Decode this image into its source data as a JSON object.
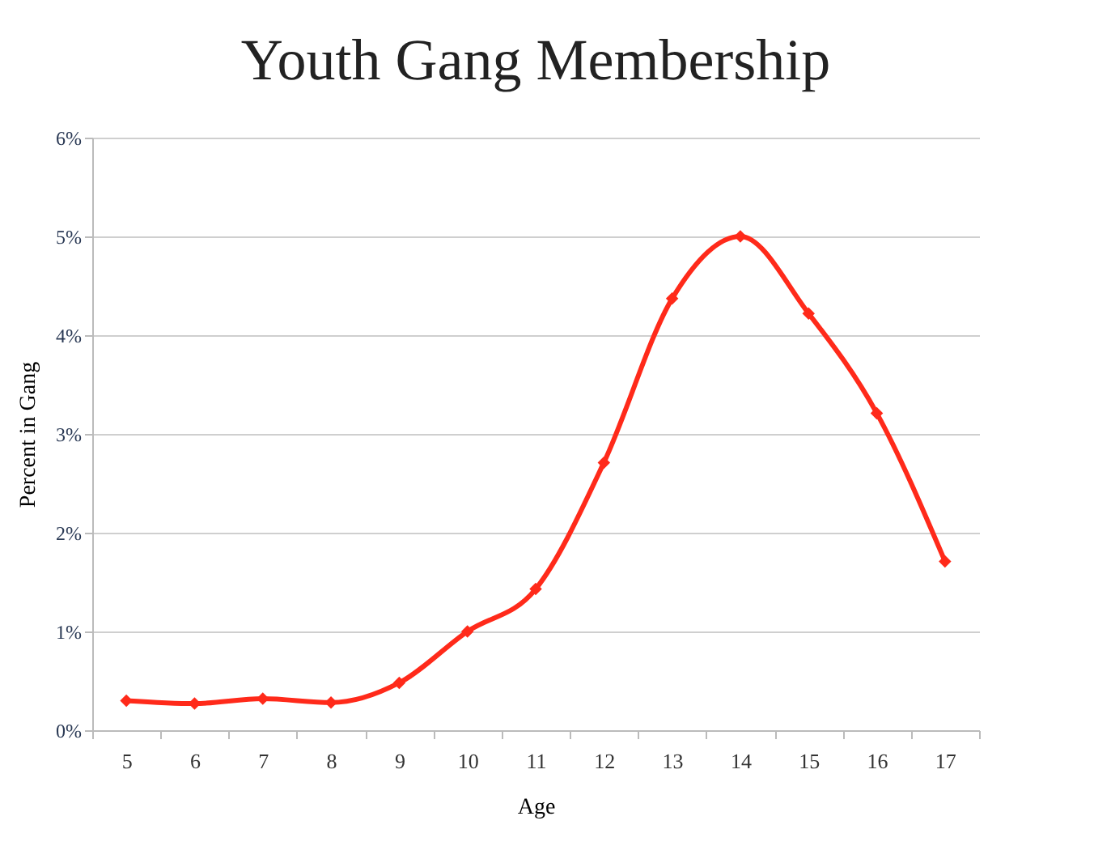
{
  "chart_data": {
    "type": "line",
    "title": "Youth Gang Membership",
    "xlabel": "Age",
    "ylabel": "Percent in Gang",
    "categories": [
      "5",
      "6",
      "7",
      "8",
      "9",
      "10",
      "11",
      "12",
      "13",
      "14",
      "15",
      "16",
      "17"
    ],
    "series": [
      {
        "color": "#ff2a1a",
        "values": [
          0.3,
          0.27,
          0.32,
          0.28,
          0.48,
          1.0,
          1.43,
          2.71,
          4.37,
          5.0,
          4.22,
          3.21,
          1.71
        ]
      }
    ],
    "ylim": [
      0,
      6
    ],
    "yticks": [
      {
        "value": 0,
        "label": "0%"
      },
      {
        "value": 1,
        "label": "1%"
      },
      {
        "value": 2,
        "label": "2%"
      },
      {
        "value": 3,
        "label": "3%"
      },
      {
        "value": 4,
        "label": "4%"
      },
      {
        "value": 5,
        "label": "5%"
      },
      {
        "value": 6,
        "label": "6%"
      }
    ],
    "grid": "y",
    "marker": "diamond",
    "line_style": "solid",
    "legend": false
  }
}
